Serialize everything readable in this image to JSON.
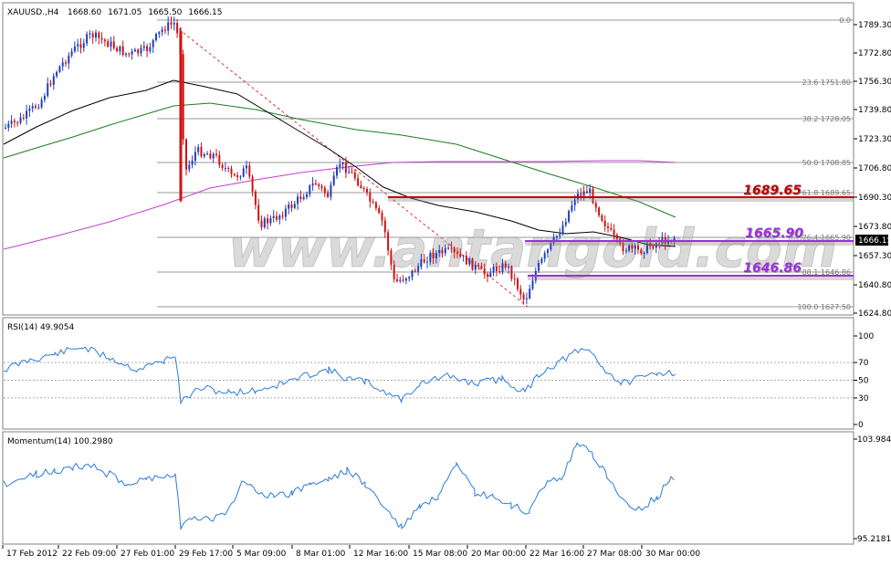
{
  "main_chart": {
    "symbol": "XAUUSD.,H4",
    "ohlc": [
      "1668.60",
      "1671.05",
      "1665.50",
      "1666.15"
    ],
    "price_ticks": [
      "1789.30",
      "1772.80",
      "1756.30",
      "1739.80",
      "1723.30",
      "1706.80",
      "1690.30",
      "1673.80",
      "1657.30",
      "1640.80",
      "1624.80"
    ],
    "current_price": "1666.15",
    "fib_labels": [
      "0.0",
      "23.6 1751.80",
      "38.2 1728.05",
      "50.0 1708.85",
      "61.8 1689.65",
      "76.4 1665.90",
      "88.1 1646.86",
      "100.0 1627.50"
    ],
    "levels": [
      {
        "label": "1689.65",
        "color": "#c00000"
      },
      {
        "label": "1665.90",
        "color": "#9b30d9"
      },
      {
        "label": "1646.86",
        "color": "#9b30d9"
      }
    ],
    "watermark": "www.antangold.com",
    "colors": {
      "bull": "#1f3fbf",
      "bear": "#d11212",
      "ma_black": "#000000",
      "ma_green": "#1a7f1a",
      "ma_purple": "#c040d0",
      "fib_line": "#999999"
    }
  },
  "rsi": {
    "title": "RSI(14) 49.9054",
    "ticks": [
      "100",
      "70",
      "50",
      "30",
      "0"
    ],
    "color": "#2b7bd9"
  },
  "momentum": {
    "title": "Momentum(14) 100.2980",
    "ticks": [
      "103.9843",
      "95.2181"
    ],
    "color": "#2b7bd9"
  },
  "time_axis": [
    "17 Feb 2012",
    "22 Feb 09:00",
    "27 Feb 01:00",
    "29 Feb 17:00",
    "5 Mar 09:00",
    "8 Mar 01:00",
    "12 Mar 16:00",
    "15 Mar 08:00",
    "20 Mar 00:00",
    "22 Mar 16:00",
    "27 Mar 08:00",
    "30 Mar 00:00"
  ]
}
